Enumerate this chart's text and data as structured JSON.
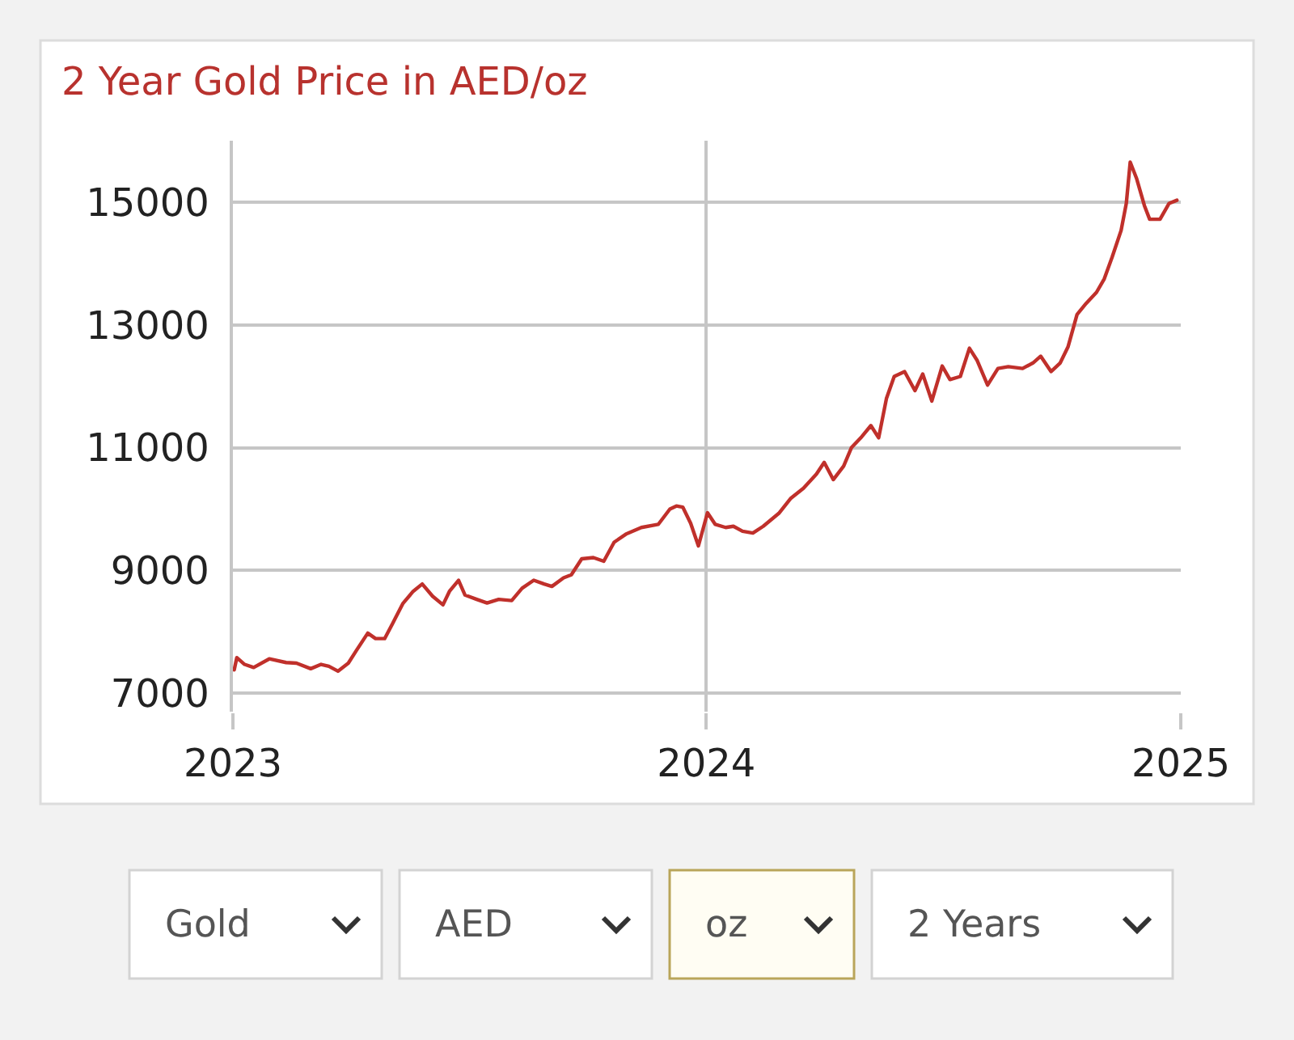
{
  "chart_data": {
    "type": "line",
    "title": "2 Year Gold Price in AED/oz",
    "x": [
      "2023-01-02",
      "2023-01-04",
      "2023-01-10",
      "2023-01-17",
      "2023-01-29",
      "2023-02-11",
      "2023-02-19",
      "2023-03-02",
      "2023-03-10",
      "2023-03-16",
      "2023-03-23",
      "2023-03-31",
      "2023-04-06",
      "2023-04-15",
      "2023-04-21",
      "2023-04-28",
      "2023-05-04",
      "2023-05-12",
      "2023-05-20",
      "2023-05-27",
      "2023-06-04",
      "2023-06-12",
      "2023-06-17",
      "2023-06-24",
      "2023-06-29",
      "2023-07-08",
      "2023-07-16",
      "2023-07-25",
      "2023-08-04",
      "2023-08-12",
      "2023-08-21",
      "2023-08-29",
      "2023-09-04",
      "2023-09-13",
      "2023-09-19",
      "2023-09-27",
      "2023-10-06",
      "2023-10-14",
      "2023-10-22",
      "2023-10-31",
      "2023-11-12",
      "2023-11-25",
      "2023-12-04",
      "2023-12-09",
      "2023-12-14",
      "2023-12-20",
      "2023-12-26",
      "2024-01-02",
      "2024-01-08",
      "2024-01-16",
      "2024-01-22",
      "2024-01-29",
      "2024-02-06",
      "2024-02-14",
      "2024-02-26",
      "2024-03-06",
      "2024-03-16",
      "2024-03-26",
      "2024-04-01",
      "2024-04-08",
      "2024-04-16",
      "2024-04-22",
      "2024-04-30",
      "2024-05-07",
      "2024-05-13",
      "2024-05-19",
      "2024-05-25",
      "2024-06-02",
      "2024-06-10",
      "2024-06-16",
      "2024-06-23",
      "2024-07-01",
      "2024-07-07",
      "2024-07-15",
      "2024-07-22",
      "2024-07-28",
      "2024-08-05",
      "2024-08-13",
      "2024-08-21",
      "2024-09-01",
      "2024-09-09",
      "2024-09-15",
      "2024-09-23",
      "2024-09-30",
      "2024-10-06",
      "2024-10-13",
      "2024-10-20",
      "2024-10-28",
      "2024-11-03",
      "2024-11-09",
      "2024-11-16",
      "2024-11-20",
      "2024-11-23",
      "2024-11-28",
      "2024-12-04",
      "2024-12-08",
      "2024-12-16",
      "2024-12-23",
      "2024-12-29"
    ],
    "values": [
      7380,
      7580,
      7470,
      7420,
      7560,
      7500,
      7490,
      7400,
      7470,
      7440,
      7360,
      7490,
      7690,
      7980,
      7890,
      7890,
      8130,
      8460,
      8660,
      8780,
      8580,
      8440,
      8660,
      8840,
      8600,
      8530,
      8470,
      8530,
      8510,
      8710,
      8840,
      8780,
      8740,
      8880,
      8930,
      9190,
      9210,
      9150,
      9460,
      9590,
      9700,
      9750,
      10000,
      10050,
      10030,
      9770,
      9400,
      9940,
      9750,
      9700,
      9720,
      9640,
      9610,
      9720,
      9930,
      10170,
      10340,
      10570,
      10760,
      10480,
      10700,
      11000,
      11180,
      11360,
      11160,
      11800,
      12160,
      12240,
      11930,
      12200,
      11760,
      12330,
      12110,
      12160,
      12620,
      12420,
      12020,
      12290,
      12320,
      12290,
      12380,
      12490,
      12240,
      12380,
      12640,
      13170,
      13350,
      13530,
      13750,
      14100,
      14540,
      14980,
      15650,
      15380,
      14940,
      14720,
      14720,
      14980,
      15030
    ],
    "color": "#c0302b",
    "xlim": [
      "2023-01-01",
      "2025-01-01"
    ],
    "xticks": [
      {
        "value": "2023-01-01",
        "label": "2023"
      },
      {
        "value": "2024-01-01",
        "label": "2024"
      },
      {
        "value": "2025-01-01",
        "label": "2025"
      }
    ],
    "ylim": [
      6700,
      16000
    ],
    "yticks": [
      7000,
      9000,
      11000,
      13000,
      15000
    ],
    "grid": true,
    "annotations": [
      "Gold",
      "AED",
      "oz",
      "2 Years"
    ]
  }
}
